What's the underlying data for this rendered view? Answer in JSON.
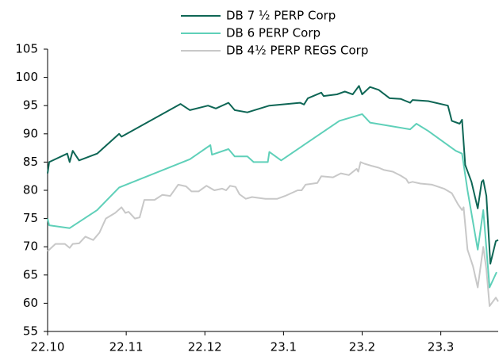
{
  "chart_data": {
    "type": "line",
    "xlim": [
      0,
      5.73
    ],
    "xticks": [
      {
        "value": 0,
        "label": "22.10"
      },
      {
        "value": 1,
        "label": "22.11"
      },
      {
        "value": 2,
        "label": "22.12"
      },
      {
        "value": 3,
        "label": "23.1"
      },
      {
        "value": 4,
        "label": "23.2"
      },
      {
        "value": 5,
        "label": "23.3"
      }
    ],
    "ylim": [
      55,
      105
    ],
    "yticks": [
      55,
      60,
      65,
      70,
      75,
      80,
      85,
      90,
      95,
      100,
      105
    ],
    "legend": "top",
    "series": [
      {
        "name": "DB 7 ½ PERP Corp",
        "color": "#0e6655",
        "x": [
          0,
          0.02,
          0.25,
          0.28,
          0.32,
          0.4,
          0.63,
          0.91,
          0.94,
          1.69,
          1.81,
          2.04,
          2.14,
          2.3,
          2.38,
          2.54,
          2.82,
          3.21,
          3.26,
          3.31,
          3.48,
          3.51,
          3.68,
          3.78,
          3.88,
          3.96,
          4.0,
          4.1,
          4.21,
          4.35,
          4.49,
          4.61,
          4.64,
          4.84,
          5.09,
          5.14,
          5.24,
          5.27,
          5.31,
          5.39,
          5.47,
          5.52,
          5.54,
          5.58,
          5.63,
          5.7,
          5.73
        ],
        "values": [
          83,
          85,
          86.5,
          85,
          87,
          85.3,
          86.5,
          90,
          89.5,
          95.3,
          94.2,
          95,
          94.5,
          95.5,
          94.2,
          93.8,
          95,
          95.5,
          95.2,
          96.3,
          97.3,
          96.7,
          97,
          97.5,
          97,
          98.5,
          97,
          98.3,
          97.8,
          96.3,
          96.2,
          95.5,
          96,
          95.8,
          95,
          92.3,
          91.8,
          92.5,
          84.5,
          81.5,
          76.8,
          81.5,
          81.8,
          79,
          67,
          71,
          71.2
        ]
      },
      {
        "name": "DB 6 PERP Corp",
        "color": "#5fd0b9",
        "x": [
          0,
          0.02,
          0.28,
          0.63,
          0.91,
          1.81,
          2.07,
          2.09,
          2.3,
          2.38,
          2.54,
          2.62,
          2.8,
          2.82,
          2.97,
          3.71,
          4.0,
          4.1,
          4.61,
          4.69,
          4.84,
          5.19,
          5.27,
          5.34,
          5.47,
          5.54,
          5.62,
          5.71
        ],
        "values": [
          75,
          73.8,
          73.3,
          76.5,
          80.5,
          85.5,
          88,
          86.3,
          87.3,
          86,
          86,
          85,
          85,
          86.8,
          85.3,
          92.3,
          93.5,
          92,
          90.8,
          91.8,
          90.5,
          87,
          86.5,
          80,
          69.5,
          76.5,
          62.8,
          65.5
        ]
      },
      {
        "name": "DB 4½ PERP REGS Corp",
        "color": "#c8c8c8",
        "x": [
          0,
          0.1,
          0.22,
          0.28,
          0.32,
          0.4,
          0.48,
          0.58,
          0.66,
          0.74,
          0.86,
          0.94,
          0.99,
          1.03,
          1.11,
          1.17,
          1.23,
          1.36,
          1.46,
          1.56,
          1.66,
          1.76,
          1.83,
          1.92,
          2.02,
          2.12,
          2.22,
          2.27,
          2.32,
          2.39,
          2.44,
          2.52,
          2.6,
          2.77,
          2.92,
          3.02,
          3.18,
          3.23,
          3.28,
          3.43,
          3.48,
          3.63,
          3.73,
          3.83,
          3.93,
          3.95,
          3.98,
          4.03,
          4.13,
          4.21,
          4.28,
          4.39,
          4.49,
          4.56,
          4.59,
          4.64,
          4.74,
          4.89,
          5.04,
          5.14,
          5.22,
          5.27,
          5.29,
          5.34,
          5.41,
          5.47,
          5.54,
          5.58,
          5.62,
          5.7,
          5.73
        ],
        "values": [
          69.2,
          70.5,
          70.5,
          69.8,
          70.5,
          70.6,
          71.8,
          71.2,
          72.5,
          75,
          76,
          77,
          76,
          76.2,
          75,
          75.2,
          78.3,
          78.3,
          79.2,
          79,
          81,
          80.7,
          79.8,
          79.8,
          80.8,
          80,
          80.3,
          80,
          80.8,
          80.6,
          79.3,
          78.5,
          78.8,
          78.5,
          78.5,
          79,
          80,
          80,
          81,
          81.3,
          82.5,
          82.3,
          83,
          82.7,
          83.8,
          83.3,
          85,
          84.7,
          84.3,
          84,
          83.6,
          83.3,
          82.6,
          82,
          81.3,
          81.5,
          81.2,
          81,
          80.3,
          79.5,
          77.5,
          76.5,
          77,
          69.5,
          66.5,
          62.8,
          70,
          66,
          59.5,
          61,
          60.3
        ]
      }
    ]
  }
}
